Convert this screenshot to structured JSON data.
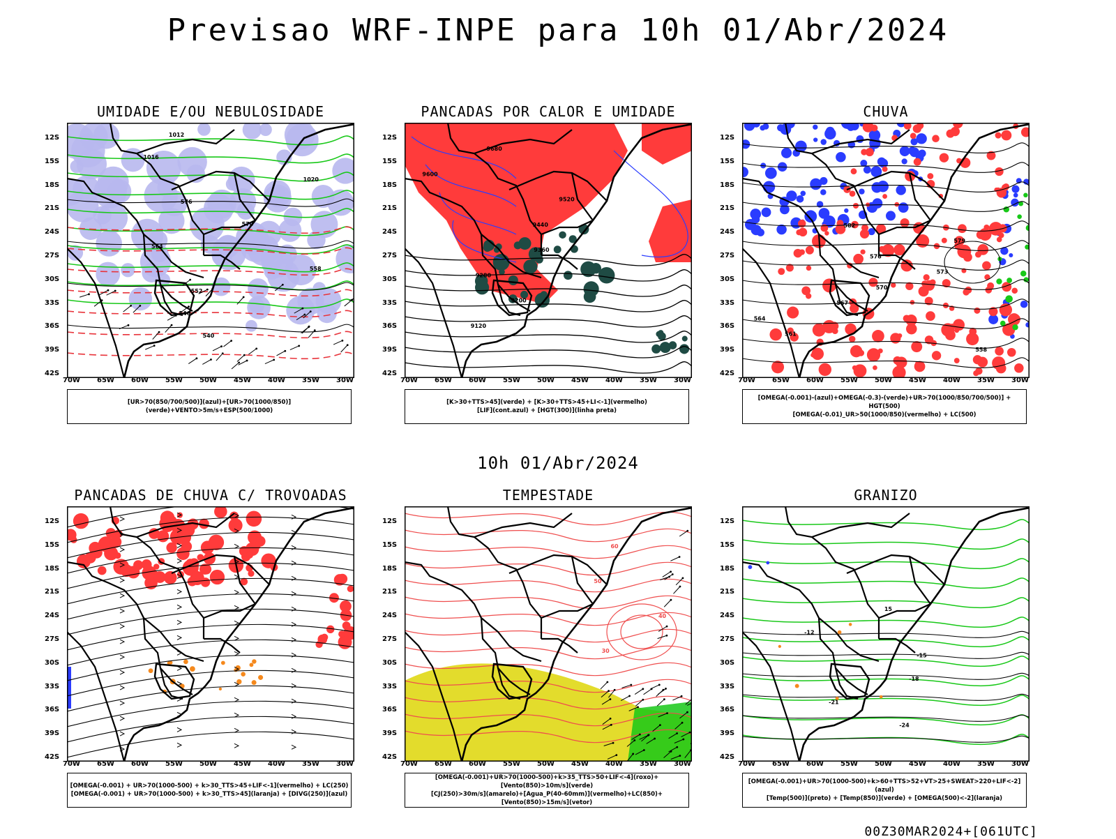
{
  "title": "Previsao WRF-INPE  para 10h 01/Abr/2024",
  "mid_date": "10h 01/Abr/2024",
  "footer": "00Z30MAR2024+[061UTC]",
  "y_ticks": [
    "12S",
    "15S",
    "18S",
    "21S",
    "24S",
    "27S",
    "30S",
    "33S",
    "36S",
    "39S",
    "42S"
  ],
  "x_ticks": [
    "70W",
    "65W",
    "60W",
    "55W",
    "50W",
    "45W",
    "40W",
    "35W",
    "30W"
  ],
  "colors": {
    "red": "#ff3b3b",
    "blue": "#2a3cff",
    "green": "#18c818",
    "lavender": "#b8b8ee",
    "teal": "#1f4b44",
    "yellow": "#e3dc2c",
    "orange": "#f5891d",
    "pink": "#ff6a6a"
  },
  "panels": [
    {
      "title": "UMIDADE E/OU NEBULOSIDADE",
      "legend": [
        "[UR>70(850/700/500)](azul)+[UR>70(1000/850)](verde)+VENTO>5m/s+ESP(500/1000)"
      ],
      "labels": [
        "1012",
        "1016",
        "1020",
        "576",
        "570",
        "564",
        "558",
        "552",
        "546",
        "540"
      ]
    },
    {
      "title": "PANCADAS POR CALOR E UMIDADE",
      "legend": [
        "[K>30+TTS>45](verde) + [K>30+TTS>45+LI<-1](vermelho)",
        "[LIF](cont.azul) + [HGT(300)](linha preta)"
      ],
      "labels": [
        "9680",
        "9600",
        "9520",
        "9440",
        "9360",
        "9280",
        "9200",
        "9120"
      ]
    },
    {
      "title": "CHUVA",
      "legend": [
        "[OMEGA(-0.001)-(azul)+OMEGA(-0.3)-(verde)+UR>70(1000/850/700/500)] + HGT(500)",
        "[OMEGA(-0.01)_UR>50(1000/850)(vermelho) + LC(500)"
      ],
      "labels": [
        "582",
        "579",
        "576",
        "573",
        "570",
        "567",
        "564",
        "561",
        "558"
      ]
    },
    {
      "title": "PANCADAS DE CHUVA C/ TROVOADAS",
      "legend": [
        "[OMEGA(-0.001) + UR>70(1000-500) + k>30_TTS>45+LIF<-1](vermelho) + LC(250)",
        "[OMEGA(-0.001) + UR>70(1000-500) + k>30_TTS>45](laranja) + [DIVG(250)](azul)"
      ],
      "labels": []
    },
    {
      "title": "TEMPESTADE",
      "legend": [
        "[OMEGA(-0.001)+UR>70(1000-500)+k>35_TTS>50+LIF<-4](roxo)+[Vento(850)>10m/s](verde)",
        "[CJ(250)>30m/s](amarelo)+[Agua_P(40-60mm)](vermelho)+LC(850)+[Vento(850)>15m/s](vetor)"
      ],
      "labels": [
        "60",
        "50",
        "40",
        "30"
      ]
    },
    {
      "title": "GRANIZO",
      "legend": [
        "[OMEGA(-0.001)+UR>70(1000-500)+k>60+TTS>52+VT>25+SWEAT>220+LIF<-2](azul)",
        "[Temp(500)](preto) + [Temp(850)](verde) + [OMEGA(500)<-2](laranja)"
      ],
      "labels": [
        "15",
        "-12",
        "-15",
        "-18",
        "-21",
        "-24"
      ]
    }
  ]
}
